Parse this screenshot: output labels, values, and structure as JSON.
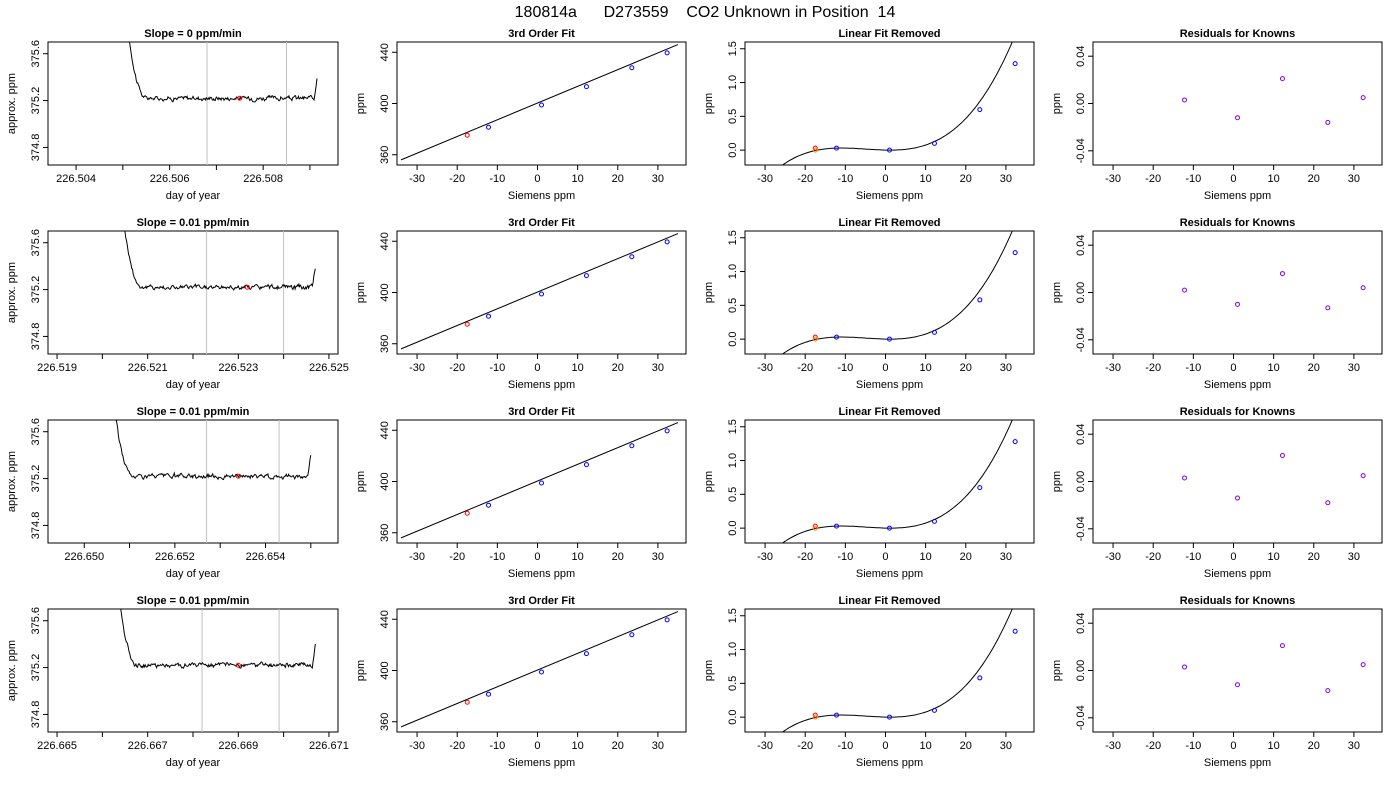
{
  "figure": {
    "title": "180814a      D273559    CO2 Unknown in Position  14"
  },
  "colors": {
    "trace": "#000000",
    "fit": "#000000",
    "known_points": "#0000ff",
    "residual_points": "#7f00ff",
    "unknown_point": "#ff0000",
    "unknown_point_alt": "#ff8c00",
    "window_lines": "#c0c0c0"
  },
  "chart_data": [
    {
      "type": "line",
      "panel": "trace",
      "row": 0,
      "title": "Slope =  0  ppm/min",
      "xlabel": "day of year",
      "ylabel": "approx. ppm",
      "xlim": [
        226.5034,
        226.5096
      ],
      "ylim": [
        374.65,
        375.7
      ],
      "xticks": [
        226.504,
        226.505,
        226.506,
        226.507,
        226.508,
        226.509
      ],
      "xtick_labels": [
        "226.504",
        "",
        "226.506",
        "",
        "226.508",
        ""
      ],
      "yticks": [
        374.8,
        375.2,
        375.6
      ],
      "ytick_labels": [
        "374.8",
        "375.2",
        "375.6"
      ],
      "window": [
        226.5068,
        226.5085
      ],
      "trace_x_range": [
        226.50505,
        226.50915
      ],
      "baseline": 375.22,
      "point": {
        "x": 226.5075,
        "y": 375.22
      }
    },
    {
      "type": "scatter",
      "panel": "fit",
      "row": 0,
      "title": "3rd Order Fit",
      "xlabel": "Siemens ppm",
      "ylabel": "ppm",
      "xlim": [
        -35,
        37
      ],
      "ylim": [
        352,
        448
      ],
      "xticks": [
        -30,
        -20,
        -10,
        0,
        10,
        20,
        30
      ],
      "yticks": [
        360,
        400,
        440
      ],
      "known": {
        "x": [
          -12.2,
          1.0,
          12.2,
          23.5,
          32.3
        ],
        "y": [
          381.5,
          398.8,
          413.2,
          427.9,
          439.5
        ]
      },
      "unknown": {
        "x": [
          -17.5
        ],
        "y": [
          375.2
        ]
      },
      "fit_line": {
        "x": [
          -34,
          35
        ],
        "y": [
          356.0,
          446.0
        ]
      }
    },
    {
      "type": "scatter",
      "panel": "linear_removed",
      "row": 0,
      "title": "Linear Fit Removed",
      "xlabel": "Siemens ppm",
      "ylabel": "ppm",
      "xlim": [
        -35,
        37
      ],
      "ylim": [
        -0.22,
        1.6
      ],
      "xticks": [
        -30,
        -20,
        -10,
        0,
        10,
        20,
        30
      ],
      "yticks": [
        0.0,
        0.5,
        1.0,
        1.5
      ],
      "ytick_labels": [
        "0.0",
        "0.5",
        "1.0",
        "1.5"
      ],
      "known": {
        "x": [
          -12.2,
          1.0,
          12.2,
          23.5,
          32.3
        ],
        "y": [
          0.03,
          0.0,
          0.1,
          0.6,
          1.28
        ]
      },
      "unknown": {
        "x": [
          -17.5
        ],
        "y": [
          0.03
        ]
      },
      "fit_curve": {
        "a": 0.0006,
        "b": 0.0001,
        "c": -0.0015,
        "d": 0.0,
        "x_range": [
          -33.5,
          35.0
        ]
      }
    },
    {
      "type": "scatter",
      "panel": "residuals",
      "row": 0,
      "title": "Residuals for Knowns",
      "xlabel": "Siemens ppm",
      "ylabel": "ppm",
      "xlim": [
        -35,
        37
      ],
      "ylim": [
        -0.052,
        0.052
      ],
      "xticks": [
        -30,
        -20,
        -10,
        0,
        10,
        20,
        30
      ],
      "yticks": [
        -0.04,
        0.0,
        0.04
      ],
      "ytick_labels": [
        "-0.04",
        "0.00",
        "0.04"
      ],
      "points": {
        "x": [
          -12.2,
          1.0,
          12.2,
          23.5,
          32.3
        ],
        "y": [
          0.003,
          -0.012,
          0.021,
          -0.016,
          0.005
        ]
      }
    },
    {
      "type": "line",
      "panel": "trace",
      "row": 1,
      "title": "Slope =  0.01  ppm/min",
      "xlabel": "day of year",
      "ylabel": "approx. ppm",
      "xlim": [
        226.5188,
        226.5252
      ],
      "ylim": [
        374.65,
        375.7
      ],
      "xticks": [
        226.519,
        226.52,
        226.521,
        226.522,
        226.523,
        226.524,
        226.525
      ],
      "xtick_labels": [
        "226.519",
        "",
        "226.521",
        "",
        "226.523",
        "",
        "226.525"
      ],
      "yticks": [
        374.8,
        375.2,
        375.6
      ],
      "ytick_labels": [
        "374.8",
        "375.2",
        "375.6"
      ],
      "window": [
        226.5223,
        226.524
      ],
      "trace_x_range": [
        226.5204,
        226.5247
      ],
      "baseline": 375.22,
      "point": {
        "x": 226.5232,
        "y": 375.22
      }
    },
    {
      "type": "scatter",
      "panel": "fit",
      "row": 1,
      "title": "3rd Order Fit",
      "xlabel": "Siemens ppm",
      "ylabel": "ppm",
      "xlim": [
        -35,
        37
      ],
      "ylim": [
        352,
        448
      ],
      "xticks": [
        -30,
        -20,
        -10,
        0,
        10,
        20,
        30
      ],
      "yticks": [
        360,
        400,
        440
      ],
      "known": {
        "x": [
          -12.2,
          1.0,
          12.2,
          23.5,
          32.3
        ],
        "y": [
          381.5,
          398.8,
          413.2,
          427.9,
          439.5
        ]
      },
      "unknown": {
        "x": [
          -17.5
        ],
        "y": [
          375.2
        ]
      },
      "fit_line": {
        "x": [
          -34,
          35
        ],
        "y": [
          356.0,
          446.0
        ]
      }
    },
    {
      "type": "scatter",
      "panel": "linear_removed",
      "row": 1,
      "title": "Linear Fit Removed",
      "xlabel": "Siemens ppm",
      "ylabel": "ppm",
      "xlim": [
        -35,
        37
      ],
      "ylim": [
        -0.22,
        1.6
      ],
      "xticks": [
        -30,
        -20,
        -10,
        0,
        10,
        20,
        30
      ],
      "yticks": [
        0.0,
        0.5,
        1.0,
        1.5
      ],
      "ytick_labels": [
        "0.0",
        "0.5",
        "1.0",
        "1.5"
      ],
      "known": {
        "x": [
          -12.2,
          1.0,
          12.2,
          23.5,
          32.3
        ],
        "y": [
          0.03,
          0.0,
          0.1,
          0.58,
          1.28
        ]
      },
      "unknown": {
        "x": [
          -17.5
        ],
        "y": [
          0.03
        ]
      },
      "fit_curve": {
        "a": 0.0006,
        "b": 0.0001,
        "c": -0.0015,
        "d": 0.0,
        "x_range": [
          -33.5,
          35.0
        ]
      }
    },
    {
      "type": "scatter",
      "panel": "residuals",
      "row": 1,
      "title": "Residuals for Knowns",
      "xlabel": "Siemens ppm",
      "ylabel": "ppm",
      "xlim": [
        -35,
        37
      ],
      "ylim": [
        -0.052,
        0.052
      ],
      "xticks": [
        -30,
        -20,
        -10,
        0,
        10,
        20,
        30
      ],
      "yticks": [
        -0.04,
        0.0,
        0.04
      ],
      "ytick_labels": [
        "-0.04",
        "0.00",
        "0.04"
      ],
      "points": {
        "x": [
          -12.2,
          1.0,
          12.2,
          23.5,
          32.3
        ],
        "y": [
          0.002,
          -0.01,
          0.016,
          -0.013,
          0.004
        ]
      }
    },
    {
      "type": "line",
      "panel": "trace",
      "row": 2,
      "title": "Slope =  0.01  ppm/min",
      "xlabel": "day of year",
      "ylabel": "approx. ppm",
      "xlim": [
        226.6492,
        226.6556
      ],
      "ylim": [
        374.65,
        375.7
      ],
      "xticks": [
        226.65,
        226.651,
        226.652,
        226.653,
        226.654,
        226.655
      ],
      "xtick_labels": [
        "226.650",
        "",
        "226.652",
        "",
        "226.654",
        ""
      ],
      "yticks": [
        374.8,
        375.2,
        375.6
      ],
      "ytick_labels": [
        "374.8",
        "375.2",
        "375.6"
      ],
      "window": [
        226.6527,
        226.6543
      ],
      "trace_x_range": [
        226.6506,
        226.655
      ],
      "baseline": 375.22,
      "point": {
        "x": 226.6534,
        "y": 375.22
      }
    },
    {
      "type": "scatter",
      "panel": "fit",
      "row": 2,
      "title": "3rd Order Fit",
      "xlabel": "Siemens ppm",
      "ylabel": "ppm",
      "xlim": [
        -35,
        37
      ],
      "ylim": [
        352,
        448
      ],
      "xticks": [
        -30,
        -20,
        -10,
        0,
        10,
        20,
        30
      ],
      "yticks": [
        360,
        400,
        440
      ],
      "known": {
        "x": [
          -12.2,
          1.0,
          12.2,
          23.5,
          32.3
        ],
        "y": [
          381.5,
          398.8,
          413.2,
          427.9,
          439.5
        ]
      },
      "unknown": {
        "x": [
          -17.5
        ],
        "y": [
          375.2
        ]
      },
      "fit_line": {
        "x": [
          -34,
          35
        ],
        "y": [
          356.0,
          446.0
        ]
      }
    },
    {
      "type": "scatter",
      "panel": "linear_removed",
      "row": 2,
      "title": "Linear Fit Removed",
      "xlabel": "Siemens ppm",
      "ylabel": "ppm",
      "xlim": [
        -35,
        37
      ],
      "ylim": [
        -0.22,
        1.6
      ],
      "xticks": [
        -30,
        -20,
        -10,
        0,
        10,
        20,
        30
      ],
      "yticks": [
        0.0,
        0.5,
        1.0,
        1.5
      ],
      "ytick_labels": [
        "0.0",
        "0.5",
        "1.0",
        "1.5"
      ],
      "known": {
        "x": [
          -12.2,
          1.0,
          12.2,
          23.5,
          32.3
        ],
        "y": [
          0.03,
          0.0,
          0.1,
          0.6,
          1.28
        ]
      },
      "unknown": {
        "x": [
          -17.5
        ],
        "y": [
          0.03
        ]
      },
      "fit_curve": {
        "a": 0.0006,
        "b": 0.0001,
        "c": -0.0015,
        "d": 0.0,
        "x_range": [
          -33.5,
          35.0
        ]
      }
    },
    {
      "type": "scatter",
      "panel": "residuals",
      "row": 2,
      "title": "Residuals for Knowns",
      "xlabel": "Siemens ppm",
      "ylabel": "ppm",
      "xlim": [
        -35,
        37
      ],
      "ylim": [
        -0.052,
        0.052
      ],
      "xticks": [
        -30,
        -20,
        -10,
        0,
        10,
        20,
        30
      ],
      "yticks": [
        -0.04,
        0.0,
        0.04
      ],
      "ytick_labels": [
        "-0.04",
        "0.00",
        "0.04"
      ],
      "points": {
        "x": [
          -12.2,
          1.0,
          12.2,
          23.5,
          32.3
        ],
        "y": [
          0.003,
          -0.014,
          0.022,
          -0.018,
          0.005
        ]
      }
    },
    {
      "type": "line",
      "panel": "trace",
      "row": 3,
      "title": "Slope =  0.01  ppm/min",
      "xlabel": "day of year",
      "ylabel": "approx. ppm",
      "xlim": [
        226.6648,
        226.6712
      ],
      "ylim": [
        374.65,
        375.7
      ],
      "xticks": [
        226.665,
        226.666,
        226.667,
        226.668,
        226.669,
        226.67,
        226.671
      ],
      "xtick_labels": [
        "226.665",
        "",
        "226.667",
        "",
        "226.669",
        "",
        "226.671"
      ],
      "yticks": [
        374.8,
        375.2,
        375.6
      ],
      "ytick_labels": [
        "374.8",
        "375.2",
        "375.6"
      ],
      "window": [
        226.6682,
        226.6699
      ],
      "trace_x_range": [
        226.6663,
        226.6707
      ],
      "baseline": 375.22,
      "point": {
        "x": 226.669,
        "y": 375.22
      }
    },
    {
      "type": "scatter",
      "panel": "fit",
      "row": 3,
      "title": "3rd Order Fit",
      "xlabel": "Siemens ppm",
      "ylabel": "ppm",
      "xlim": [
        -35,
        37
      ],
      "ylim": [
        352,
        448
      ],
      "xticks": [
        -30,
        -20,
        -10,
        0,
        10,
        20,
        30
      ],
      "yticks": [
        360,
        400,
        440
      ],
      "known": {
        "x": [
          -12.2,
          1.0,
          12.2,
          23.5,
          32.3
        ],
        "y": [
          381.5,
          398.8,
          413.2,
          427.9,
          439.5
        ]
      },
      "unknown": {
        "x": [
          -17.5
        ],
        "y": [
          375.2
        ]
      },
      "fit_line": {
        "x": [
          -34,
          35
        ],
        "y": [
          356.0,
          446.0
        ]
      }
    },
    {
      "type": "scatter",
      "panel": "linear_removed",
      "row": 3,
      "title": "Linear Fit Removed",
      "xlabel": "Siemens ppm",
      "ylabel": "ppm",
      "xlim": [
        -35,
        37
      ],
      "ylim": [
        -0.22,
        1.6
      ],
      "xticks": [
        -30,
        -20,
        -10,
        0,
        10,
        20,
        30
      ],
      "yticks": [
        0.0,
        0.5,
        1.0,
        1.5
      ],
      "ytick_labels": [
        "0.0",
        "0.5",
        "1.0",
        "1.5"
      ],
      "known": {
        "x": [
          -12.2,
          1.0,
          12.2,
          23.5,
          32.3
        ],
        "y": [
          0.03,
          0.0,
          0.1,
          0.58,
          1.27
        ]
      },
      "unknown": {
        "x": [
          -17.5
        ],
        "y": [
          0.03
        ]
      },
      "fit_curve": {
        "a": 0.0006,
        "b": 0.0001,
        "c": -0.0015,
        "d": 0.0,
        "x_range": [
          -33.5,
          35.0
        ]
      }
    },
    {
      "type": "scatter",
      "panel": "residuals",
      "row": 3,
      "title": "Residuals for Knowns",
      "xlabel": "Siemens ppm",
      "ylabel": "ppm",
      "xlim": [
        -35,
        37
      ],
      "ylim": [
        -0.052,
        0.052
      ],
      "xticks": [
        -30,
        -20,
        -10,
        0,
        10,
        20,
        30
      ],
      "yticks": [
        -0.04,
        0.0,
        0.04
      ],
      "ytick_labels": [
        "-0.04",
        "0.00",
        "0.04"
      ],
      "points": {
        "x": [
          -12.2,
          1.0,
          12.2,
          23.5,
          32.3
        ],
        "y": [
          0.003,
          -0.012,
          0.021,
          -0.017,
          0.005
        ]
      }
    }
  ]
}
